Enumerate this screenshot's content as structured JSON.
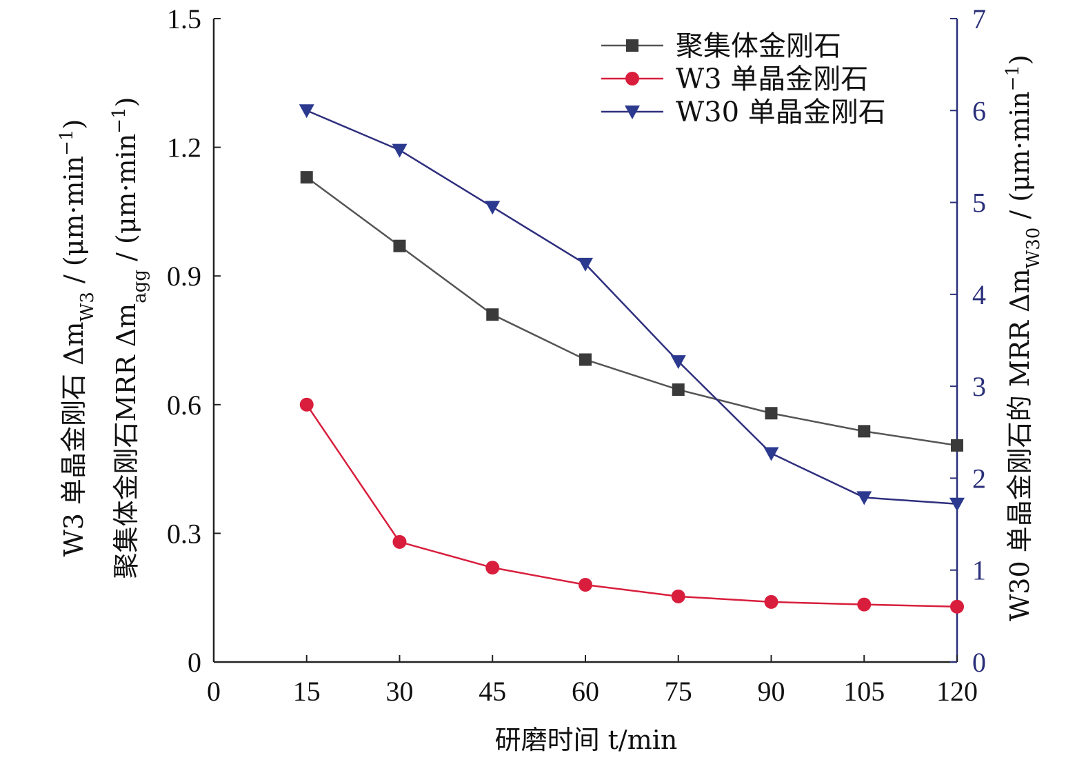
{
  "chart_data": {
    "type": "line",
    "title": "",
    "x": [
      15,
      30,
      45,
      60,
      75,
      90,
      105,
      120
    ],
    "xlabel": "研磨时间 t/min",
    "xlim": [
      0,
      120
    ],
    "xticks": [
      "0",
      "15",
      "30",
      "45",
      "60",
      "75",
      "90",
      "105",
      "120"
    ],
    "ylabel_left_line1": "W3 单晶金刚石 Δm",
    "ylabel_left_line1_sub": "W3",
    "ylabel_left_line1_unit": " / (μm·min",
    "ylabel_left_line2": "聚集体金刚石MRR Δm",
    "ylabel_left_line2_sub": "agg",
    "ylabel_left_line2_unit": " / (μm·min",
    "ylabel_unit_sup": "−1",
    "ylabel_unit_close": ")",
    "ylim_left": [
      0,
      1.5
    ],
    "yticks_left": [
      "0",
      "0.3",
      "0.6",
      "0.9",
      "1.2",
      "1.5"
    ],
    "ylabel_right": "W30 单晶金刚石的 MRR Δm",
    "ylabel_right_sub": "W30",
    "ylabel_right_unit": " / (μm·min",
    "ylim_right": [
      0,
      7
    ],
    "yticks_right": [
      "0",
      "1",
      "2",
      "3",
      "4",
      "5",
      "6",
      "7"
    ],
    "grid": false,
    "legend_position": "top-right",
    "series": [
      {
        "name": "聚集体金刚石",
        "axis": "left",
        "marker": "square",
        "color": "#3a3a3a",
        "line_color": "#555555",
        "values": [
          1.13,
          0.97,
          0.81,
          0.705,
          0.635,
          0.58,
          0.538,
          0.505
        ]
      },
      {
        "name": "W3 单晶金刚石",
        "axis": "left",
        "marker": "circle",
        "color": "#d81e3c",
        "line_color": "#d81e3c",
        "values": [
          0.6,
          0.28,
          0.22,
          0.18,
          0.153,
          0.14,
          0.134,
          0.129
        ]
      },
      {
        "name": "W30 单晶金刚石",
        "axis": "right",
        "marker": "triangle-down",
        "color": "#2b3a8f",
        "line_color": "#2e2f7e",
        "values": [
          6.0,
          5.57,
          4.95,
          4.33,
          3.27,
          2.27,
          1.79,
          1.72
        ]
      }
    ]
  }
}
